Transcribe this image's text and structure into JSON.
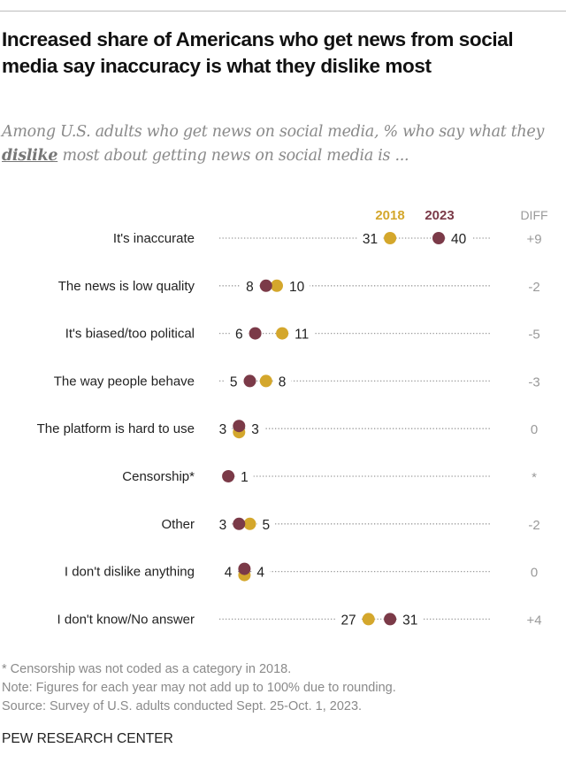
{
  "title": "Increased share of Americans who get news from social media say inaccuracy is what they dislike most",
  "subtitle": {
    "prefix": "Among U.S. adults who get news on social media, % who say what they ",
    "emphasis": "dislike",
    "suffix": " most about getting news on social media is ..."
  },
  "colors": {
    "2018": "#D4A72C",
    "2023": "#7B3A48",
    "dots_line": "#9a9a9a"
  },
  "chart_data": {
    "type": "dot",
    "series": [
      {
        "name": "2018",
        "values": [
          31,
          10,
          11,
          8,
          3,
          null,
          5,
          4,
          27
        ]
      },
      {
        "name": "2023",
        "values": [
          40,
          8,
          6,
          5,
          3,
          1,
          3,
          4,
          31
        ]
      }
    ],
    "categories": [
      "It's inaccurate",
      "The news is low quality",
      "It's biased/too political",
      "The way people behave",
      "The platform is hard to use",
      "Censorship*",
      "Other",
      "I don't dislike anything",
      "I don't know/No answer"
    ],
    "diff_header": "DIFF",
    "diff": [
      "+9",
      "-2",
      "-5",
      "-3",
      "0",
      "*",
      "-2",
      "0",
      "+4"
    ],
    "labels_2018": [
      "31",
      "10",
      "11",
      "8",
      "3",
      "",
      "5",
      "4",
      "27"
    ],
    "labels_2023": [
      "40",
      "8",
      "6",
      "5",
      "3",
      "1",
      "3",
      "4",
      "31"
    ],
    "xlim": [
      0,
      50
    ]
  },
  "footer": {
    "note1": "* Censorship was not coded as a category in 2018.",
    "note2": "Note: Figures for each year may not add up to 100% due to rounding.",
    "source": "Source: Survey of U.S. adults conducted Sept. 25-Oct. 1, 2023.",
    "brand": "PEW RESEARCH CENTER"
  }
}
